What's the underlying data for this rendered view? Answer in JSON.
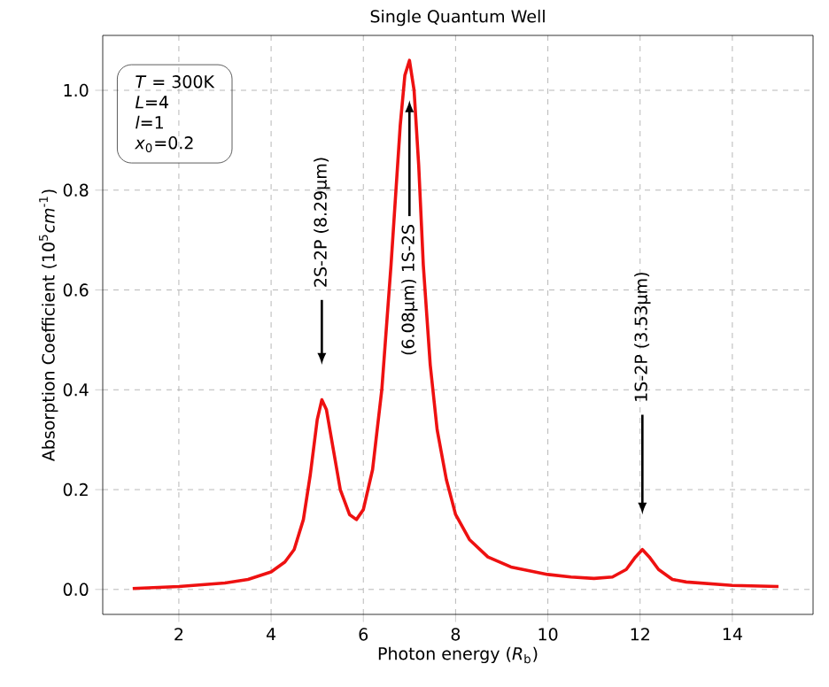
{
  "chart_data": {
    "type": "line",
    "title": "Single Quantum Well",
    "xlabel": "Photon energy (*R*$_{b}$)",
    "ylabel": "Absorption Coefficient (10$^{5}$*cm*$^{-1}$)",
    "x": [
      1,
      2,
      3,
      3.5,
      4,
      4.3,
      4.5,
      4.7,
      4.85,
      5.0,
      5.1,
      5.2,
      5.35,
      5.5,
      5.7,
      5.85,
      6.0,
      6.2,
      6.4,
      6.6,
      6.8,
      6.9,
      7.0,
      7.1,
      7.2,
      7.3,
      7.45,
      7.6,
      7.8,
      8.0,
      8.3,
      8.7,
      9.2,
      10,
      10.5,
      11,
      11.4,
      11.7,
      11.9,
      12.05,
      12.2,
      12.4,
      12.7,
      13,
      14,
      15
    ],
    "series": [
      {
        "color": "#ee1111",
        "values": [
          0.002,
          0.006,
          0.013,
          0.02,
          0.035,
          0.055,
          0.08,
          0.14,
          0.23,
          0.34,
          0.38,
          0.36,
          0.28,
          0.2,
          0.15,
          0.14,
          0.16,
          0.24,
          0.4,
          0.65,
          0.93,
          1.03,
          1.06,
          1.0,
          0.85,
          0.65,
          0.45,
          0.32,
          0.22,
          0.15,
          0.1,
          0.065,
          0.045,
          0.03,
          0.025,
          0.022,
          0.025,
          0.04,
          0.065,
          0.08,
          0.065,
          0.04,
          0.02,
          0.015,
          0.008,
          0.006
        ]
      }
    ],
    "xlim": [
      0.35,
      15.75
    ],
    "ylim": [
      -0.05,
      1.11
    ],
    "xticks": [
      2,
      4,
      6,
      8,
      10,
      12,
      14
    ],
    "yticks": [
      {
        "value": 0,
        "label": "0.0"
      },
      {
        "value": 0.2,
        "label": "0.2"
      },
      {
        "value": 0.4,
        "label": "0.4"
      },
      {
        "value": 0.6,
        "label": "0.6"
      },
      {
        "value": 0.8,
        "label": "0.8"
      },
      {
        "value": 1.0,
        "label": "1.0"
      }
    ],
    "grid": true,
    "marker": "none",
    "line_style": "solid",
    "annotations": [
      "*T* = 300K",
      "*L*=4",
      "*l*=1",
      "*x*$_{0}$=0.2",
      "2S-2P    (8.29μm)",
      {
        "text": "(6.08μm)    1S-2S",
        "x": 7.0,
        "y": 0.98
      },
      "1S-2P    (3.53μm)"
    ]
  }
}
